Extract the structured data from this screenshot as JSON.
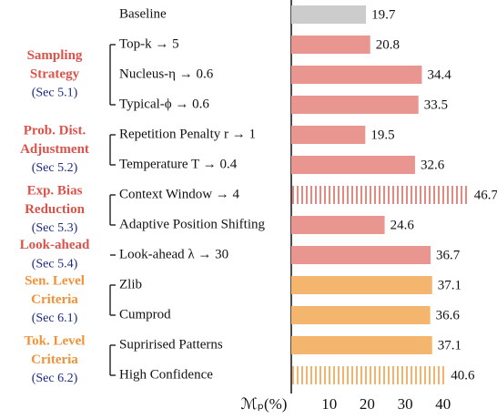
{
  "chart_data": {
    "type": "bar",
    "orientation": "horizontal",
    "categories": [
      "Baseline",
      "Top-k → 5",
      "Nucleus-η → 0.6",
      "Typical-ϕ → 0.6",
      "Repetition Penalty r → 1",
      "Temperature T → 0.4",
      "Context Window → 4",
      "Adaptive Position Shifting",
      "Look-ahead λ → 30",
      "Zlib",
      "Cumprod",
      "Suprirised Patterns",
      "High Confidence"
    ],
    "values": [
      19.7,
      20.8,
      34.4,
      33.5,
      19.5,
      32.6,
      46.7,
      24.6,
      36.7,
      37.1,
      36.6,
      37.1,
      40.6
    ],
    "colors": [
      "#cccccc",
      "#e8968f",
      "#e8968f",
      "#e8968f",
      "#e8968f",
      "#e8968f",
      "#e06a5e",
      "#e8968f",
      "#e8968f",
      "#f4b56e",
      "#f4b56e",
      "#f4b56e",
      "#f0a04b"
    ],
    "hatched": [
      false,
      false,
      false,
      false,
      false,
      false,
      true,
      false,
      false,
      false,
      false,
      false,
      true
    ],
    "groups": [
      {
        "name": [
          "Sampling",
          "Strategy"
        ],
        "section": "(Sec 5.1)",
        "color": "#d9534a",
        "start": 1,
        "end": 3
      },
      {
        "name": [
          "Prob. Dist.",
          "Adjustment"
        ],
        "section": "(Sec 5.2)",
        "color": "#d9534a",
        "start": 4,
        "end": 5
      },
      {
        "name": [
          "Exp. Bias",
          "Reduction"
        ],
        "section": "(Sec 5.3)",
        "color": "#d9534a",
        "start": 6,
        "end": 7
      },
      {
        "name": [
          "Look-ahead"
        ],
        "section": "(Sec 5.4)",
        "color": "#d9534a",
        "start": 8,
        "end": 8
      },
      {
        "name": [
          "Sen. Level",
          "Criteria"
        ],
        "section": "(Sec 6.1)",
        "color": "#f0923a",
        "start": 9,
        "end": 10
      },
      {
        "name": [
          "Tok. Level",
          "Criteria"
        ],
        "section": "(Sec 6.2)",
        "color": "#f0923a",
        "start": 11,
        "end": 12
      }
    ],
    "xlabel": "ℳₚ(%)",
    "xlim": [
      0,
      50
    ],
    "xticks": [
      10,
      20,
      30,
      40
    ]
  }
}
